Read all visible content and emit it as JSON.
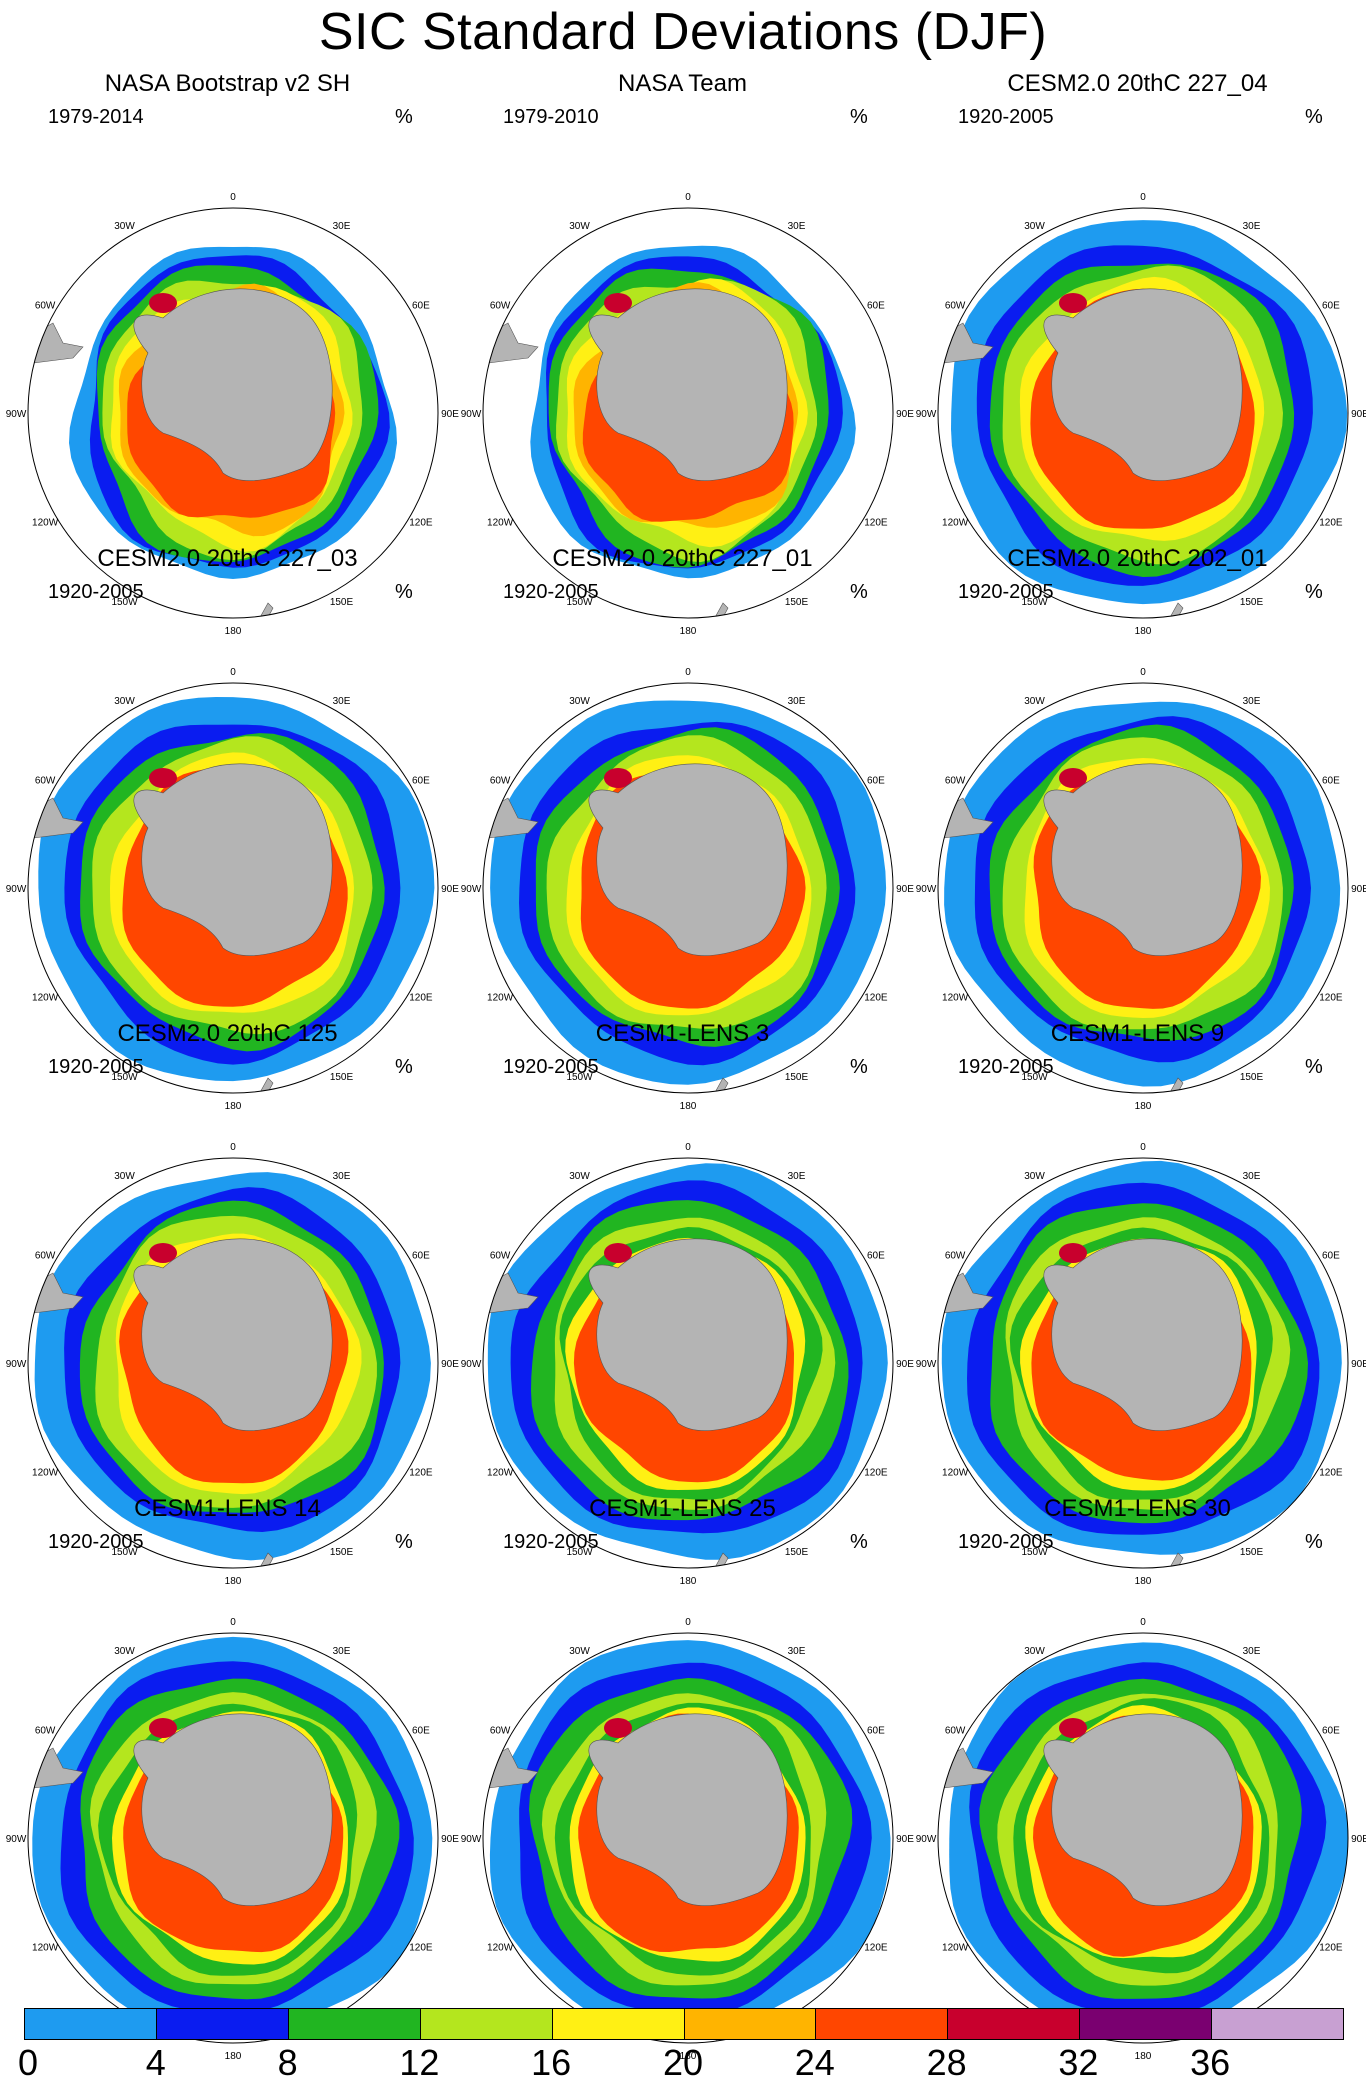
{
  "figure": {
    "title": "SIC Standard Deviations (DJF)",
    "unit": "%",
    "panels": [
      {
        "title": "NASA Bootstrap v2 SH",
        "period": "1979-2014",
        "variant": "obs"
      },
      {
        "title": "NASA Team",
        "period": "1979-2010",
        "variant": "obs2"
      },
      {
        "title": "CESM2.0 20thC 227_04",
        "period": "1920-2005",
        "variant": "cesm2"
      },
      {
        "title": "CESM2.0 20thC 227_03",
        "period": "1920-2005",
        "variant": "cesm2"
      },
      {
        "title": "CESM2.0 20thC 227_01",
        "period": "1920-2005",
        "variant": "cesm2"
      },
      {
        "title": "CESM2.0 20thC 202_01",
        "period": "1920-2005",
        "variant": "cesm2"
      },
      {
        "title": "CESM2.0 20thC 125",
        "period": "1920-2005",
        "variant": "cesm2"
      },
      {
        "title": "CESM1-LENS 3",
        "period": "1920-2005",
        "variant": "lens"
      },
      {
        "title": "CESM1-LENS 9",
        "period": "1920-2005",
        "variant": "lens"
      },
      {
        "title": "CESM1-LENS 14",
        "period": "1920-2005",
        "variant": "lens"
      },
      {
        "title": "CESM1-LENS 25",
        "period": "1920-2005",
        "variant": "lens"
      },
      {
        "title": "CESM1-LENS 30",
        "period": "1920-2005",
        "variant": "lens"
      }
    ],
    "longitude_labels": [
      "0",
      "30E",
      "60E",
      "90E",
      "120E",
      "150E",
      "180",
      "150W",
      "120W",
      "90W",
      "60W",
      "30W"
    ],
    "colorbar": {
      "levels": [
        "0",
        "4",
        "8",
        "12",
        "16",
        "20",
        "24",
        "28",
        "32",
        "36"
      ],
      "colors": [
        "#1e9bf0",
        "#0a1cf0",
        "#21b521",
        "#b4e61e",
        "#fff014",
        "#ffb400",
        "#ff4600",
        "#c8002d",
        "#7a0070",
        "#c8a0d2"
      ]
    },
    "land_color": "#b4b4b4"
  }
}
